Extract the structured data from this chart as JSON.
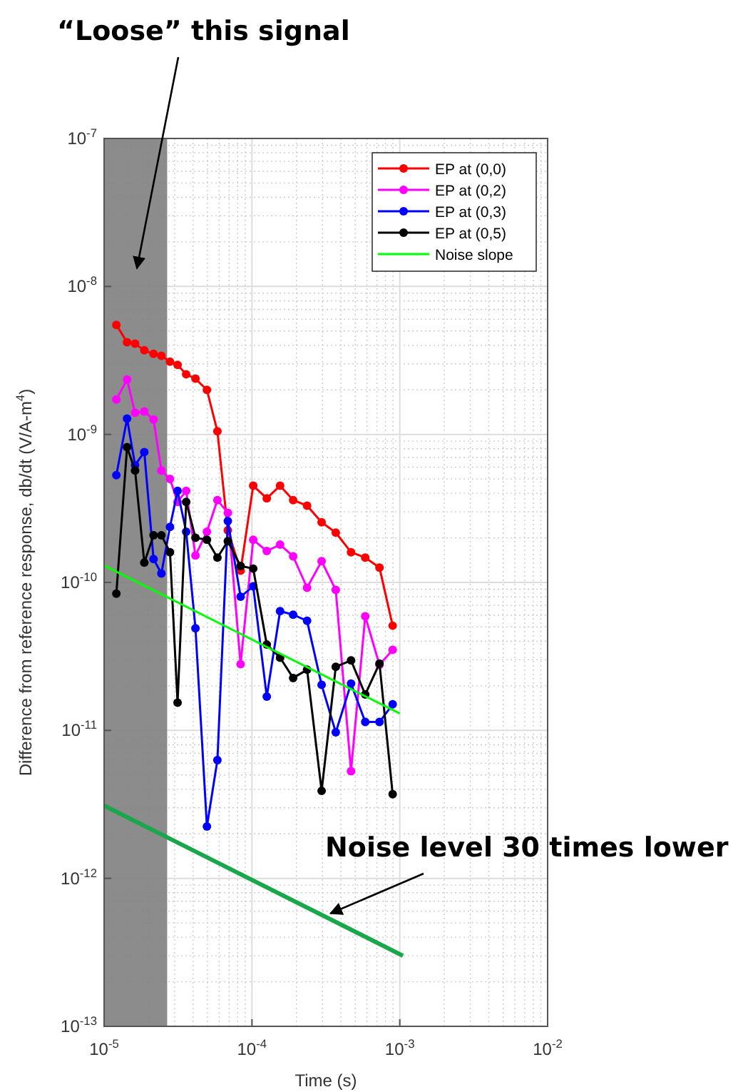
{
  "chart_data": {
    "type": "line",
    "xlabel": "Time (s)",
    "ylabel": "Difference from reference response,  db/dt (V/A-m$^{4}$)",
    "log": "xy",
    "grid": true,
    "legend": "top right",
    "marker": "circle",
    "line_style": "solid",
    "xlim": [
      1e-05,
      0.01
    ],
    "ylim": [
      1e-13,
      1e-07
    ],
    "xticks": [
      {
        "value": 1e-05,
        "label": "10$^{-5}$"
      },
      {
        "value": 0.0001,
        "label": "10$^{-4}$"
      },
      {
        "value": 0.001,
        "label": "10$^{-3}$"
      },
      {
        "value": 0.01,
        "label": "10$^{-2}$"
      }
    ],
    "yticks": [
      {
        "value": 1e-13,
        "label": "10$^{-13}$"
      },
      {
        "value": 1e-12,
        "label": "10$^{-12}$"
      },
      {
        "value": 1e-11,
        "label": "10$^{-11}$"
      },
      {
        "value": 1e-10,
        "label": "10$^{-10}$"
      },
      {
        "value": 1e-09,
        "label": "10$^{-9}$"
      },
      {
        "value": 1e-08,
        "label": "10$^{-8}$"
      },
      {
        "value": 1e-07,
        "label": "10$^{-7}$"
      }
    ],
    "x": [
      1.21e-05,
      1.43e-05,
      1.62e-05,
      1.87e-05,
      2.16e-05,
      2.44e-05,
      2.79e-05,
      3.14e-05,
      3.59e-05,
      4.15e-05,
      4.96e-05,
      5.84e-05,
      6.87e-05,
      8.38e-05,
      0.000102,
      0.000126,
      0.000155,
      0.00019,
      0.000236,
      0.000296,
      0.000369,
      0.000468,
      0.000584,
      0.000729,
      0.000895
    ],
    "series": [
      {
        "name": "EP at (0,0)",
        "color": "#ff0000",
        "values": [
          5.5e-09,
          4.2e-09,
          4.1e-09,
          3.7e-09,
          3.5e-09,
          3.4e-09,
          3.1e-09,
          2.95e-09,
          2.55e-09,
          2.38e-09,
          2e-09,
          1.05e-09,
          2.25e-10,
          1.2e-10,
          4.5e-10,
          3.7e-10,
          4.5e-10,
          3.6e-10,
          3.3e-10,
          2.55e-10,
          2.17e-10,
          1.6e-10,
          1.47e-10,
          1.26e-10,
          5.1e-11
        ]
      },
      {
        "name": "EP at (0,2)",
        "color": "#ff00ff",
        "values": [
          1.72e-09,
          2.35e-09,
          1.4e-09,
          1.43e-09,
          1.26e-09,
          5.7e-10,
          5e-10,
          3.5e-10,
          4.15e-10,
          1.52e-10,
          2.2e-10,
          3.6e-10,
          2.95e-10,
          2.8e-11,
          1.94e-10,
          1.63e-10,
          1.8e-10,
          1.5e-10,
          9.2e-11,
          1.39e-10,
          8.9e-11,
          5.3e-12,
          5.9e-11,
          2.77e-11,
          3.5e-11
        ]
      },
      {
        "name": "EP at (0,3)",
        "color": "#0000ff",
        "values": [
          5.3e-10,
          1.28e-09,
          6.2e-10,
          7.6e-10,
          1.44e-10,
          1.15e-10,
          2.37e-10,
          4.15e-10,
          2.2e-10,
          4.9e-11,
          2.24e-12,
          6.3e-12,
          2.6e-10,
          8e-11,
          9.4e-11,
          1.69e-11,
          6.4e-11,
          6.05e-11,
          5.5e-11,
          2.03e-11,
          9.7e-12,
          2.07e-11,
          1.14e-11,
          1.14e-11,
          1.5e-11
        ]
      },
      {
        "name": "EP at (0,5)",
        "color": "#000000",
        "values": [
          8.4e-11,
          8.2e-10,
          5.7e-10,
          1.36e-10,
          2.08e-10,
          2.08e-10,
          1.6e-10,
          1.54e-11,
          3.5e-10,
          2e-10,
          1.94e-10,
          1.47e-10,
          1.9e-10,
          1.29e-10,
          1.24e-10,
          3.8e-11,
          3.1e-11,
          2.26e-11,
          2.57e-11,
          3.9e-12,
          2.69e-11,
          2.97e-11,
          1.75e-11,
          2.83e-11,
          3.7e-12
        ]
      },
      {
        "name": "Noise slope",
        "color": "#00ff00",
        "marker": "none",
        "x": [
          1e-05,
          0.001
        ],
        "values": [
          1.3e-10,
          1.3e-11
        ]
      },
      {
        "color": "#1aa64a",
        "marker": "none",
        "x": [
          1e-05,
          0.00105
        ],
        "values": [
          3.1e-12,
          3e-13
        ]
      }
    ],
    "bands": [
      {
        "axis": "x",
        "from": 1e-05,
        "to": 2.67e-05,
        "color": "#808080"
      }
    ],
    "annotations": [
      "“Loose” this signal",
      {
        "text": "Noise level 30 times lower",
        "x": 0.00034,
        "y": 5.8e-13
      }
    ]
  }
}
